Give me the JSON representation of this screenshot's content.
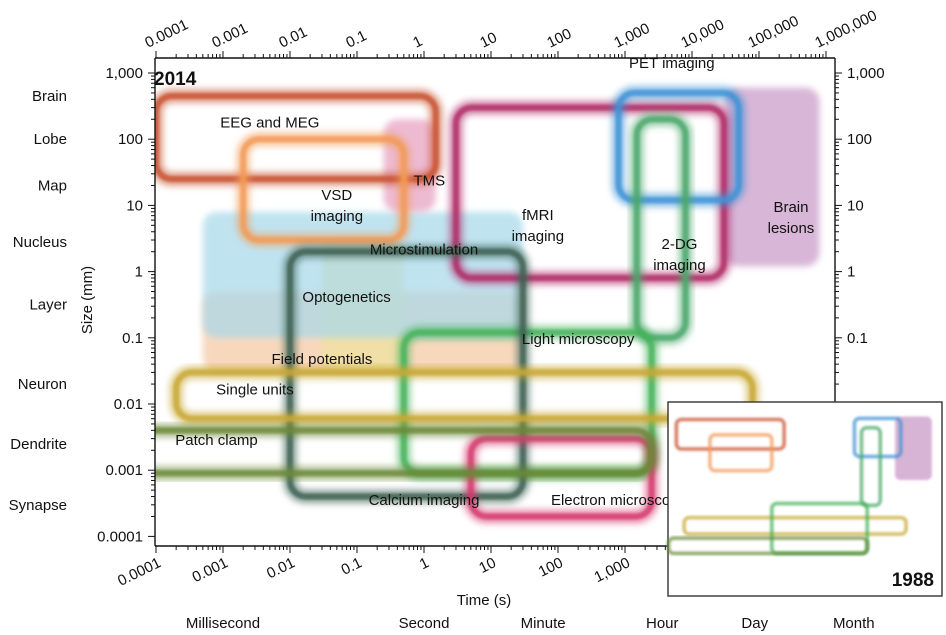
{
  "chart_data": {
    "type": "area",
    "year_label": "2014",
    "inset_year_label": "1988",
    "xlabel": "Time (s)",
    "ylabel": "Size (mm)",
    "x_scale": "log",
    "y_scale": "log",
    "xlim": [
      3e-05,
      3000000
    ],
    "ylim": [
      5e-05,
      2000
    ],
    "x_ticks": [
      {
        "value": 0.0001,
        "label": "0.0001"
      },
      {
        "value": 0.001,
        "label": "0.001"
      },
      {
        "value": 0.01,
        "label": "0.01"
      },
      {
        "value": 0.1,
        "label": "0.1"
      },
      {
        "value": 1,
        "label": "1"
      },
      {
        "value": 10,
        "label": "10"
      },
      {
        "value": 100,
        "label": "100"
      },
      {
        "value": 1000,
        "label": "1,000"
      },
      {
        "value": 10000,
        "label": "10,000"
      },
      {
        "value": 100000,
        "label": "100,000"
      },
      {
        "value": 1000000,
        "label": "1,000,000"
      }
    ],
    "y_ticks": [
      {
        "value": 1000,
        "label": "1,000"
      },
      {
        "value": 100,
        "label": "100"
      },
      {
        "value": 10,
        "label": "10"
      },
      {
        "value": 1,
        "label": "1"
      },
      {
        "value": 0.1,
        "label": "0.1"
      },
      {
        "value": 0.01,
        "label": "0.01"
      },
      {
        "value": 0.001,
        "label": "0.001"
      },
      {
        "value": 0.0001,
        "label": "0.0001"
      }
    ],
    "size_levels": [
      {
        "label": "Brain",
        "value": 450
      },
      {
        "label": "Lobe",
        "value": 100
      },
      {
        "label": "Map",
        "value": 20
      },
      {
        "label": "Nucleus",
        "value": 2.8
      },
      {
        "label": "Layer",
        "value": 0.32
      },
      {
        "label": "Neuron",
        "value": 0.02
      },
      {
        "label": "Dendrite",
        "value": 0.0025
      },
      {
        "label": "Synapse",
        "value": 0.0003
      }
    ],
    "time_labels": [
      {
        "label": "Millisecond",
        "value": 0.001
      },
      {
        "label": "Second",
        "value": 1
      },
      {
        "label": "Minute",
        "value": 60
      },
      {
        "label": "Hour",
        "value": 3600
      },
      {
        "label": "Day",
        "value": 86400
      },
      {
        "label": "Month",
        "value": 2600000
      }
    ],
    "series": [
      {
        "name": "Field potentials",
        "color": "#f5c9a3",
        "x": [
          0.0005,
          30
        ],
        "y": [
          0.03,
          0.5
        ],
        "filled": true,
        "label_at": [
          0.03,
          0.04
        ]
      },
      {
        "name": "Microstimulation",
        "color": "#ede29c",
        "x": [
          0.03,
          0.5
        ],
        "y": [
          0.03,
          3
        ],
        "filled": true,
        "label_at": [
          1,
          1.8
        ]
      },
      {
        "name": "Optogenetics",
        "color": "#a8d8ea",
        "x": [
          0.0005,
          30
        ],
        "y": [
          0.1,
          8
        ],
        "filled": true,
        "label_at": [
          0.07,
          0.35
        ]
      },
      {
        "name": "Brain lesions",
        "color": "#c99ac7",
        "x": [
          30000,
          800000
        ],
        "y": [
          1.2,
          600
        ],
        "filled": true,
        "label_at": [
          300000,
          8
        ]
      },
      {
        "name": "TMS",
        "color": "#e6a0c0",
        "x": [
          0.25,
          1.5
        ],
        "y": [
          8,
          200
        ],
        "filled": true,
        "label_at": [
          1.2,
          20
        ]
      },
      {
        "name": "EEG and MEG",
        "color": "#c9522e",
        "x": [
          0.0001,
          1.5
        ],
        "y": [
          25,
          450
        ],
        "label_at": [
          0.005,
          150
        ]
      },
      {
        "name": "VSD imaging",
        "color": "#f29a55",
        "x": [
          0.002,
          0.5
        ],
        "y": [
          3,
          100
        ],
        "label_at": [
          0.05,
          12
        ]
      },
      {
        "name": "fMRI imaging",
        "color": "#b02c66",
        "x": [
          3,
          30000
        ],
        "y": [
          0.8,
          300
        ],
        "label_at": [
          50,
          6
        ]
      },
      {
        "name": "PET imaging",
        "color": "#3d92d6",
        "x": [
          800,
          50000
        ],
        "y": [
          12,
          500
        ],
        "label_at": [
          5000,
          1200
        ]
      },
      {
        "name": "2-DG imaging",
        "color": "#4aa86a",
        "x": [
          1500,
          8000
        ],
        "y": [
          0.1,
          200
        ],
        "label_at": [
          6500,
          2.2
        ]
      },
      {
        "name": "Light microscopy",
        "color": "#44b35a",
        "x": [
          0.5,
          2500
        ],
        "y": [
          0.0009,
          0.12
        ],
        "label_at": [
          200,
          0.08
        ]
      },
      {
        "name": "Calcium imaging",
        "color": "#3d6052",
        "x": [
          0.01,
          30
        ],
        "y": [
          0.0004,
          2
        ],
        "label_at": [
          1,
          0.0003
        ]
      },
      {
        "name": "Electron microscopy",
        "color": "#d6386d",
        "x": [
          5,
          2500
        ],
        "y": [
          0.0002,
          0.003
        ],
        "label_at": [
          800,
          0.0003
        ]
      },
      {
        "name": "Single units",
        "color": "#c8a832",
        "x": [
          0.0002,
          80000
        ],
        "y": [
          0.006,
          0.03
        ],
        "label_at": [
          0.003,
          0.014
        ]
      },
      {
        "name": "Patch clamp",
        "color": "#6b8a3a",
        "x": [
          5e-05,
          2500
        ],
        "y": [
          0.0009,
          0.004
        ],
        "label_at": [
          0.0008,
          0.0024
        ]
      }
    ],
    "inset_series": [
      {
        "name": "EEG and MEG",
        "color": "#c9522e",
        "x": [
          0.0001,
          1.5
        ],
        "y": [
          25,
          450
        ]
      },
      {
        "name": "VSD imaging",
        "color": "#f29a55",
        "x": [
          0.002,
          0.5
        ],
        "y": [
          3,
          100
        ]
      },
      {
        "name": "PET imaging",
        "color": "#3d92d6",
        "x": [
          800,
          50000
        ],
        "y": [
          12,
          500
        ]
      },
      {
        "name": "2-DG imaging",
        "color": "#4aa86a",
        "x": [
          1500,
          8000
        ],
        "y": [
          0.1,
          200
        ]
      },
      {
        "name": "Brain lesions",
        "color": "#c99ac7",
        "x": [
          30000,
          800000
        ],
        "y": [
          1.2,
          600
        ],
        "filled": true
      },
      {
        "name": "Single units",
        "color": "#c8a832",
        "x": [
          0.0002,
          80000
        ],
        "y": [
          0.006,
          0.03
        ]
      },
      {
        "name": "Light microscopy",
        "color": "#44b35a",
        "x": [
          0.5,
          2500
        ],
        "y": [
          0.0009,
          0.12
        ]
      },
      {
        "name": "Patch clamp",
        "color": "#6b8a3a",
        "x": [
          5e-05,
          2500
        ],
        "y": [
          0.0009,
          0.004
        ]
      }
    ]
  }
}
